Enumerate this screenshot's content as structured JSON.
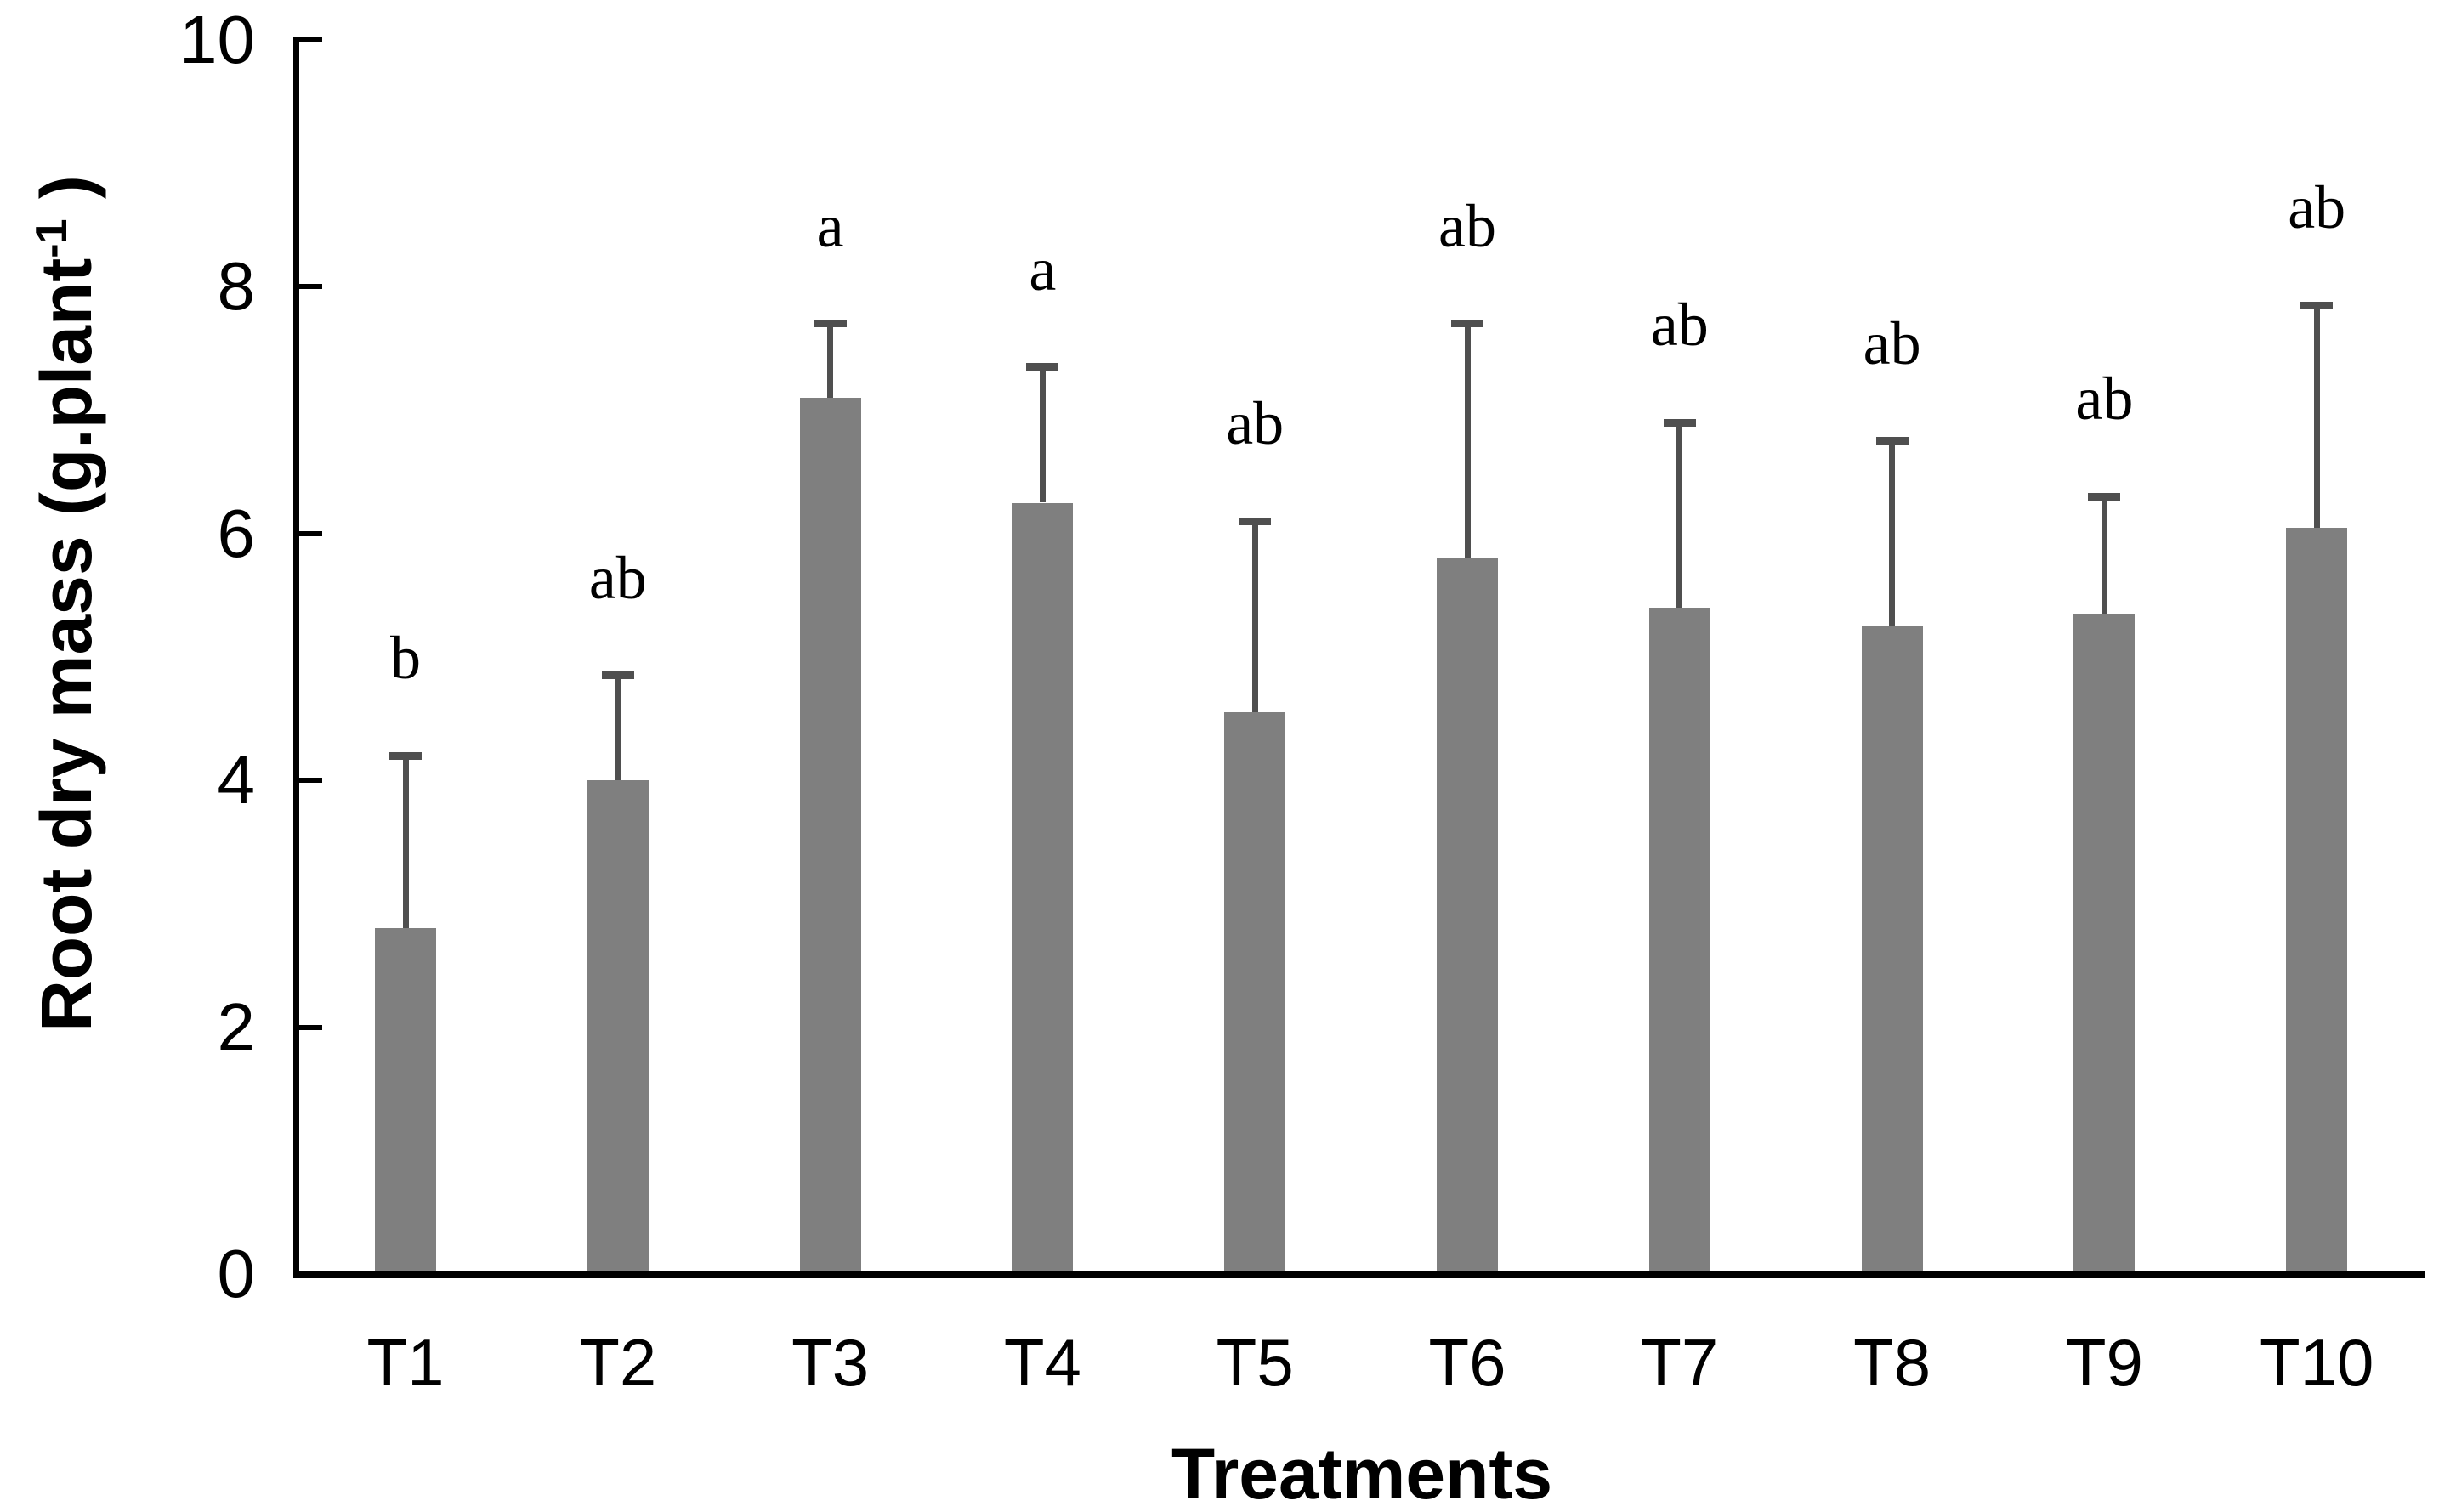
{
  "chart_data": {
    "type": "bar",
    "categories": [
      "T1",
      "T2",
      "T3",
      "T4",
      "T5",
      "T6",
      "T7",
      "T8",
      "T9",
      "T10"
    ],
    "values": [
      2.8,
      4.0,
      7.1,
      6.25,
      4.55,
      5.8,
      5.4,
      5.25,
      5.35,
      6.05
    ],
    "errors_plus": [
      1.4,
      0.85,
      0.6,
      1.1,
      1.55,
      1.9,
      1.5,
      1.5,
      0.95,
      1.8
    ],
    "sig_letters": [
      "b",
      "ab",
      "a",
      "a",
      "ab",
      "ab",
      "ab",
      "ab",
      "ab",
      "ab"
    ],
    "xlabel": "Treatments",
    "ylabel_prefix": "Root dry mass (g.plant",
    "ylabel_superscript": "-1",
    "ylabel_suffix": " )",
    "yticks": [
      0,
      2,
      4,
      6,
      8,
      10
    ],
    "ylim": [
      0,
      10
    ],
    "grid": "off",
    "legend": "none",
    "bar_color": "#7f7f7f",
    "error_bar_color": "#4f4f4f",
    "axis_color": "#000000",
    "text_color": "#000000"
  }
}
